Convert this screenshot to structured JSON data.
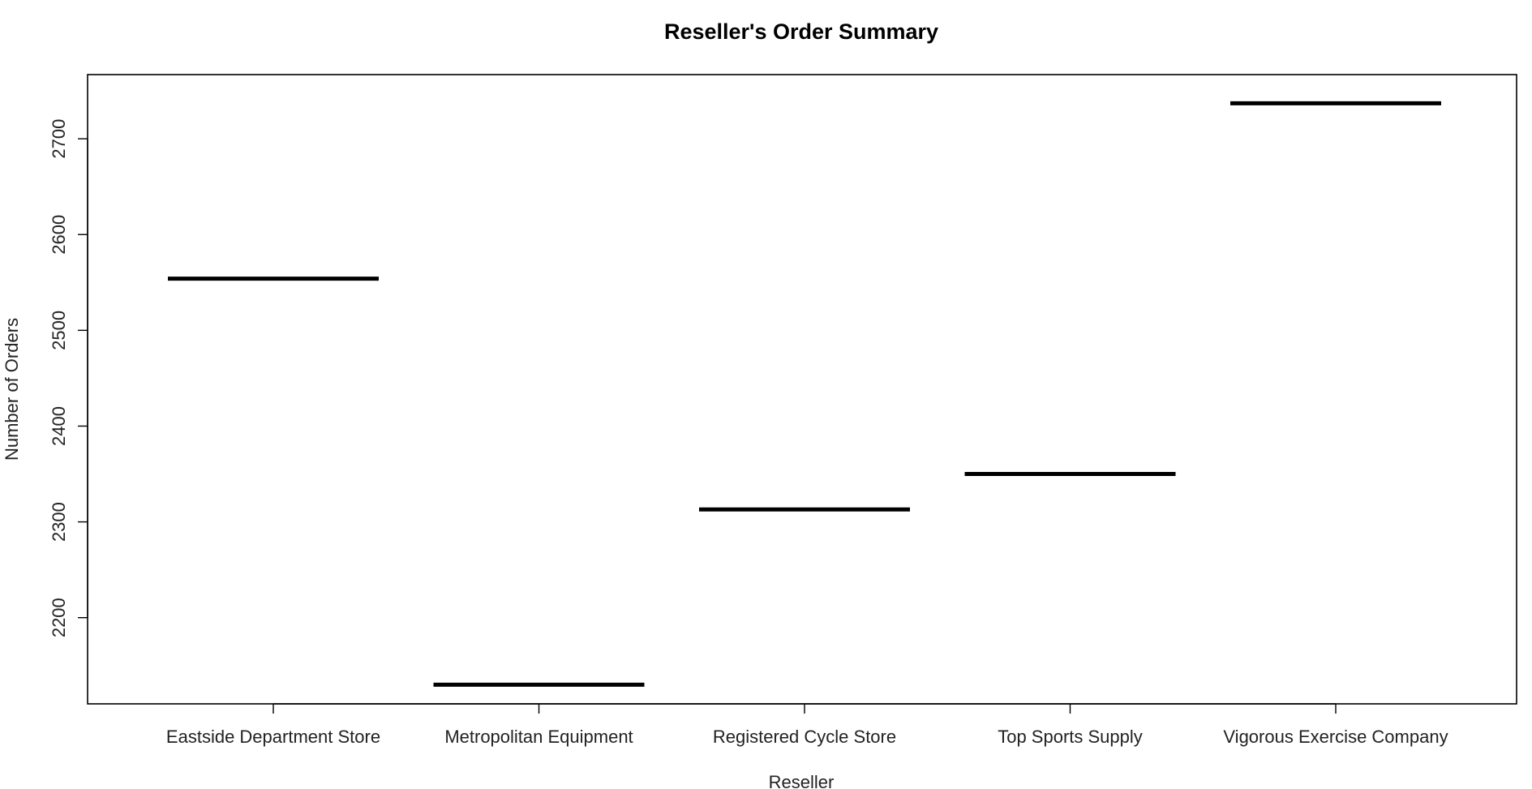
{
  "chart_data": {
    "type": "boxplot",
    "title": "Reseller's Order Summary",
    "xlabel": "Reseller",
    "ylabel": "Number of Orders",
    "categories": [
      "Eastside Department Store",
      "Metropolitan Equipment",
      "Registered Cycle Store",
      "Top Sports Supply",
      "Vigorous Exercise Company"
    ],
    "values": [
      2554,
      2130,
      2313,
      2350,
      2737
    ],
    "y_ticks": [
      "2200",
      "2300",
      "2400",
      "2500",
      "2600",
      "2700"
    ],
    "ylim": [
      2110,
      2767
    ],
    "grid": false,
    "legend": "none",
    "line_color": "#000000"
  }
}
